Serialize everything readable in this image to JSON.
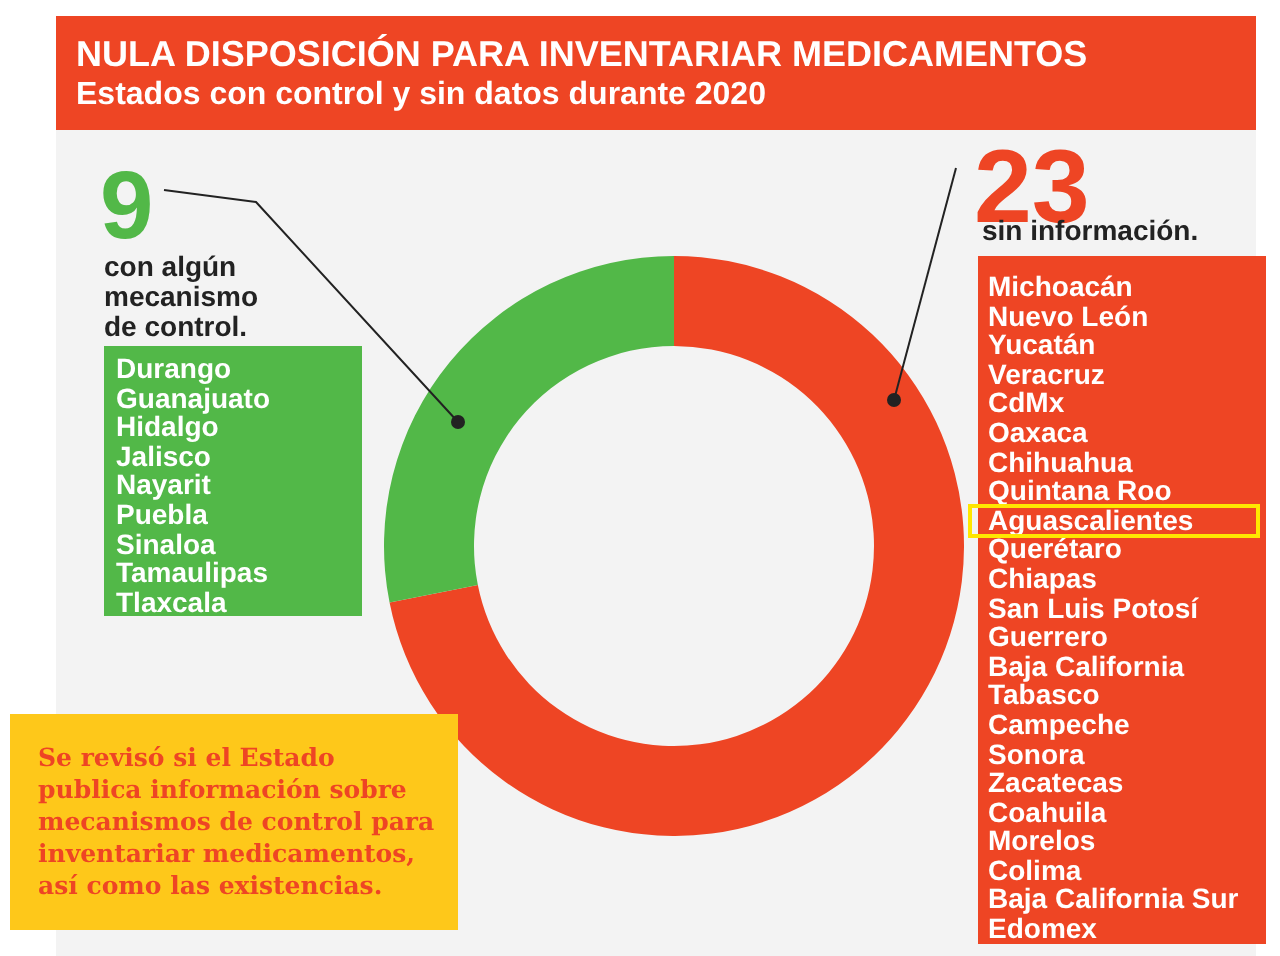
{
  "chart_data": {
    "type": "donut",
    "title": "NULA DISPOSICIÓN PARA INVENTARIAR MEDICAMENTOS",
    "subtitle": "Estados con control y sin datos durante 2020",
    "categories": [
      "sin información.",
      "con algún mecanismo de control."
    ],
    "values": [
      23,
      9
    ],
    "colors": [
      "#ee4524",
      "#52b848"
    ],
    "data_labels": true,
    "annotations": [
      "Durango\nGuanajuato\nHidalgo\nJalisco\nNayarit\nPuebla\nSinaloa\nTamaulipas\nTlaxcala",
      "Michoacán\nNuevo León\nYucatán\nVeracruz\nCdMx\nOaxaca\nChihuahua\nQuintana Roo\nAguascalientes\nQuerétaro\nChiapas\nSan Luis Potosí\nGuerrero\nBaja California\nTabasco\nCampeche\nSonora\nZacatecas\nCoahuila\nMorelos\nColima\nBaja California Sur\nEdomex",
      "Se revisó si el Estado publica información sobre mecanismos de control para inventariar medicamentos, así como las existencias."
    ]
  }
}
